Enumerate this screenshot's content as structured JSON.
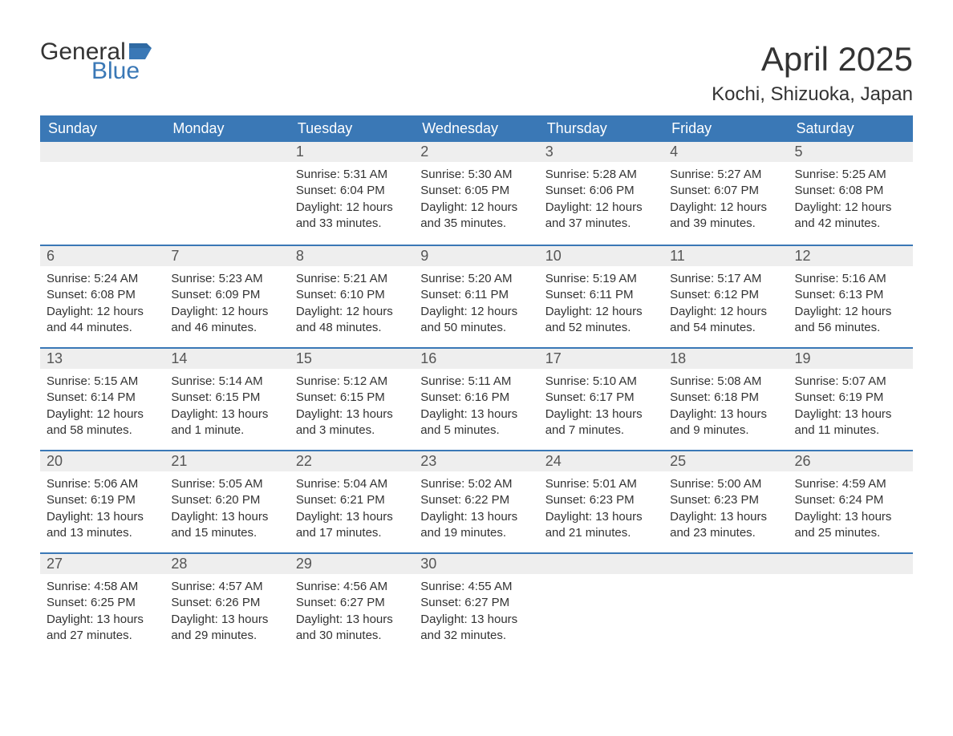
{
  "logo": {
    "text_general": "General",
    "text_blue": "Blue",
    "flag_color": "#3a78b6"
  },
  "header": {
    "month_title": "April 2025",
    "location": "Kochi, Shizuoka, Japan"
  },
  "colors": {
    "header_bg": "#3a78b6",
    "header_text": "#ffffff",
    "daynum_bg": "#eeeeee",
    "daynum_text": "#555555",
    "body_text": "#333333",
    "row_border": "#3a78b6",
    "page_bg": "#ffffff"
  },
  "typography": {
    "month_title_fontsize": 42,
    "location_fontsize": 24,
    "dow_fontsize": 18,
    "daynum_fontsize": 18,
    "body_fontsize": 15,
    "logo_fontsize": 30
  },
  "calendar": {
    "days_of_week": [
      "Sunday",
      "Monday",
      "Tuesday",
      "Wednesday",
      "Thursday",
      "Friday",
      "Saturday"
    ],
    "weeks": [
      [
        {
          "num": "",
          "sunrise": "",
          "sunset": "",
          "daylight": ""
        },
        {
          "num": "",
          "sunrise": "",
          "sunset": "",
          "daylight": ""
        },
        {
          "num": "1",
          "sunrise": "Sunrise: 5:31 AM",
          "sunset": "Sunset: 6:04 PM",
          "daylight": "Daylight: 12 hours and 33 minutes."
        },
        {
          "num": "2",
          "sunrise": "Sunrise: 5:30 AM",
          "sunset": "Sunset: 6:05 PM",
          "daylight": "Daylight: 12 hours and 35 minutes."
        },
        {
          "num": "3",
          "sunrise": "Sunrise: 5:28 AM",
          "sunset": "Sunset: 6:06 PM",
          "daylight": "Daylight: 12 hours and 37 minutes."
        },
        {
          "num": "4",
          "sunrise": "Sunrise: 5:27 AM",
          "sunset": "Sunset: 6:07 PM",
          "daylight": "Daylight: 12 hours and 39 minutes."
        },
        {
          "num": "5",
          "sunrise": "Sunrise: 5:25 AM",
          "sunset": "Sunset: 6:08 PM",
          "daylight": "Daylight: 12 hours and 42 minutes."
        }
      ],
      [
        {
          "num": "6",
          "sunrise": "Sunrise: 5:24 AM",
          "sunset": "Sunset: 6:08 PM",
          "daylight": "Daylight: 12 hours and 44 minutes."
        },
        {
          "num": "7",
          "sunrise": "Sunrise: 5:23 AM",
          "sunset": "Sunset: 6:09 PM",
          "daylight": "Daylight: 12 hours and 46 minutes."
        },
        {
          "num": "8",
          "sunrise": "Sunrise: 5:21 AM",
          "sunset": "Sunset: 6:10 PM",
          "daylight": "Daylight: 12 hours and 48 minutes."
        },
        {
          "num": "9",
          "sunrise": "Sunrise: 5:20 AM",
          "sunset": "Sunset: 6:11 PM",
          "daylight": "Daylight: 12 hours and 50 minutes."
        },
        {
          "num": "10",
          "sunrise": "Sunrise: 5:19 AM",
          "sunset": "Sunset: 6:11 PM",
          "daylight": "Daylight: 12 hours and 52 minutes."
        },
        {
          "num": "11",
          "sunrise": "Sunrise: 5:17 AM",
          "sunset": "Sunset: 6:12 PM",
          "daylight": "Daylight: 12 hours and 54 minutes."
        },
        {
          "num": "12",
          "sunrise": "Sunrise: 5:16 AM",
          "sunset": "Sunset: 6:13 PM",
          "daylight": "Daylight: 12 hours and 56 minutes."
        }
      ],
      [
        {
          "num": "13",
          "sunrise": "Sunrise: 5:15 AM",
          "sunset": "Sunset: 6:14 PM",
          "daylight": "Daylight: 12 hours and 58 minutes."
        },
        {
          "num": "14",
          "sunrise": "Sunrise: 5:14 AM",
          "sunset": "Sunset: 6:15 PM",
          "daylight": "Daylight: 13 hours and 1 minute."
        },
        {
          "num": "15",
          "sunrise": "Sunrise: 5:12 AM",
          "sunset": "Sunset: 6:15 PM",
          "daylight": "Daylight: 13 hours and 3 minutes."
        },
        {
          "num": "16",
          "sunrise": "Sunrise: 5:11 AM",
          "sunset": "Sunset: 6:16 PM",
          "daylight": "Daylight: 13 hours and 5 minutes."
        },
        {
          "num": "17",
          "sunrise": "Sunrise: 5:10 AM",
          "sunset": "Sunset: 6:17 PM",
          "daylight": "Daylight: 13 hours and 7 minutes."
        },
        {
          "num": "18",
          "sunrise": "Sunrise: 5:08 AM",
          "sunset": "Sunset: 6:18 PM",
          "daylight": "Daylight: 13 hours and 9 minutes."
        },
        {
          "num": "19",
          "sunrise": "Sunrise: 5:07 AM",
          "sunset": "Sunset: 6:19 PM",
          "daylight": "Daylight: 13 hours and 11 minutes."
        }
      ],
      [
        {
          "num": "20",
          "sunrise": "Sunrise: 5:06 AM",
          "sunset": "Sunset: 6:19 PM",
          "daylight": "Daylight: 13 hours and 13 minutes."
        },
        {
          "num": "21",
          "sunrise": "Sunrise: 5:05 AM",
          "sunset": "Sunset: 6:20 PM",
          "daylight": "Daylight: 13 hours and 15 minutes."
        },
        {
          "num": "22",
          "sunrise": "Sunrise: 5:04 AM",
          "sunset": "Sunset: 6:21 PM",
          "daylight": "Daylight: 13 hours and 17 minutes."
        },
        {
          "num": "23",
          "sunrise": "Sunrise: 5:02 AM",
          "sunset": "Sunset: 6:22 PM",
          "daylight": "Daylight: 13 hours and 19 minutes."
        },
        {
          "num": "24",
          "sunrise": "Sunrise: 5:01 AM",
          "sunset": "Sunset: 6:23 PM",
          "daylight": "Daylight: 13 hours and 21 minutes."
        },
        {
          "num": "25",
          "sunrise": "Sunrise: 5:00 AM",
          "sunset": "Sunset: 6:23 PM",
          "daylight": "Daylight: 13 hours and 23 minutes."
        },
        {
          "num": "26",
          "sunrise": "Sunrise: 4:59 AM",
          "sunset": "Sunset: 6:24 PM",
          "daylight": "Daylight: 13 hours and 25 minutes."
        }
      ],
      [
        {
          "num": "27",
          "sunrise": "Sunrise: 4:58 AM",
          "sunset": "Sunset: 6:25 PM",
          "daylight": "Daylight: 13 hours and 27 minutes."
        },
        {
          "num": "28",
          "sunrise": "Sunrise: 4:57 AM",
          "sunset": "Sunset: 6:26 PM",
          "daylight": "Daylight: 13 hours and 29 minutes."
        },
        {
          "num": "29",
          "sunrise": "Sunrise: 4:56 AM",
          "sunset": "Sunset: 6:27 PM",
          "daylight": "Daylight: 13 hours and 30 minutes."
        },
        {
          "num": "30",
          "sunrise": "Sunrise: 4:55 AM",
          "sunset": "Sunset: 6:27 PM",
          "daylight": "Daylight: 13 hours and 32 minutes."
        },
        {
          "num": "",
          "sunrise": "",
          "sunset": "",
          "daylight": ""
        },
        {
          "num": "",
          "sunrise": "",
          "sunset": "",
          "daylight": ""
        },
        {
          "num": "",
          "sunrise": "",
          "sunset": "",
          "daylight": ""
        }
      ]
    ]
  }
}
